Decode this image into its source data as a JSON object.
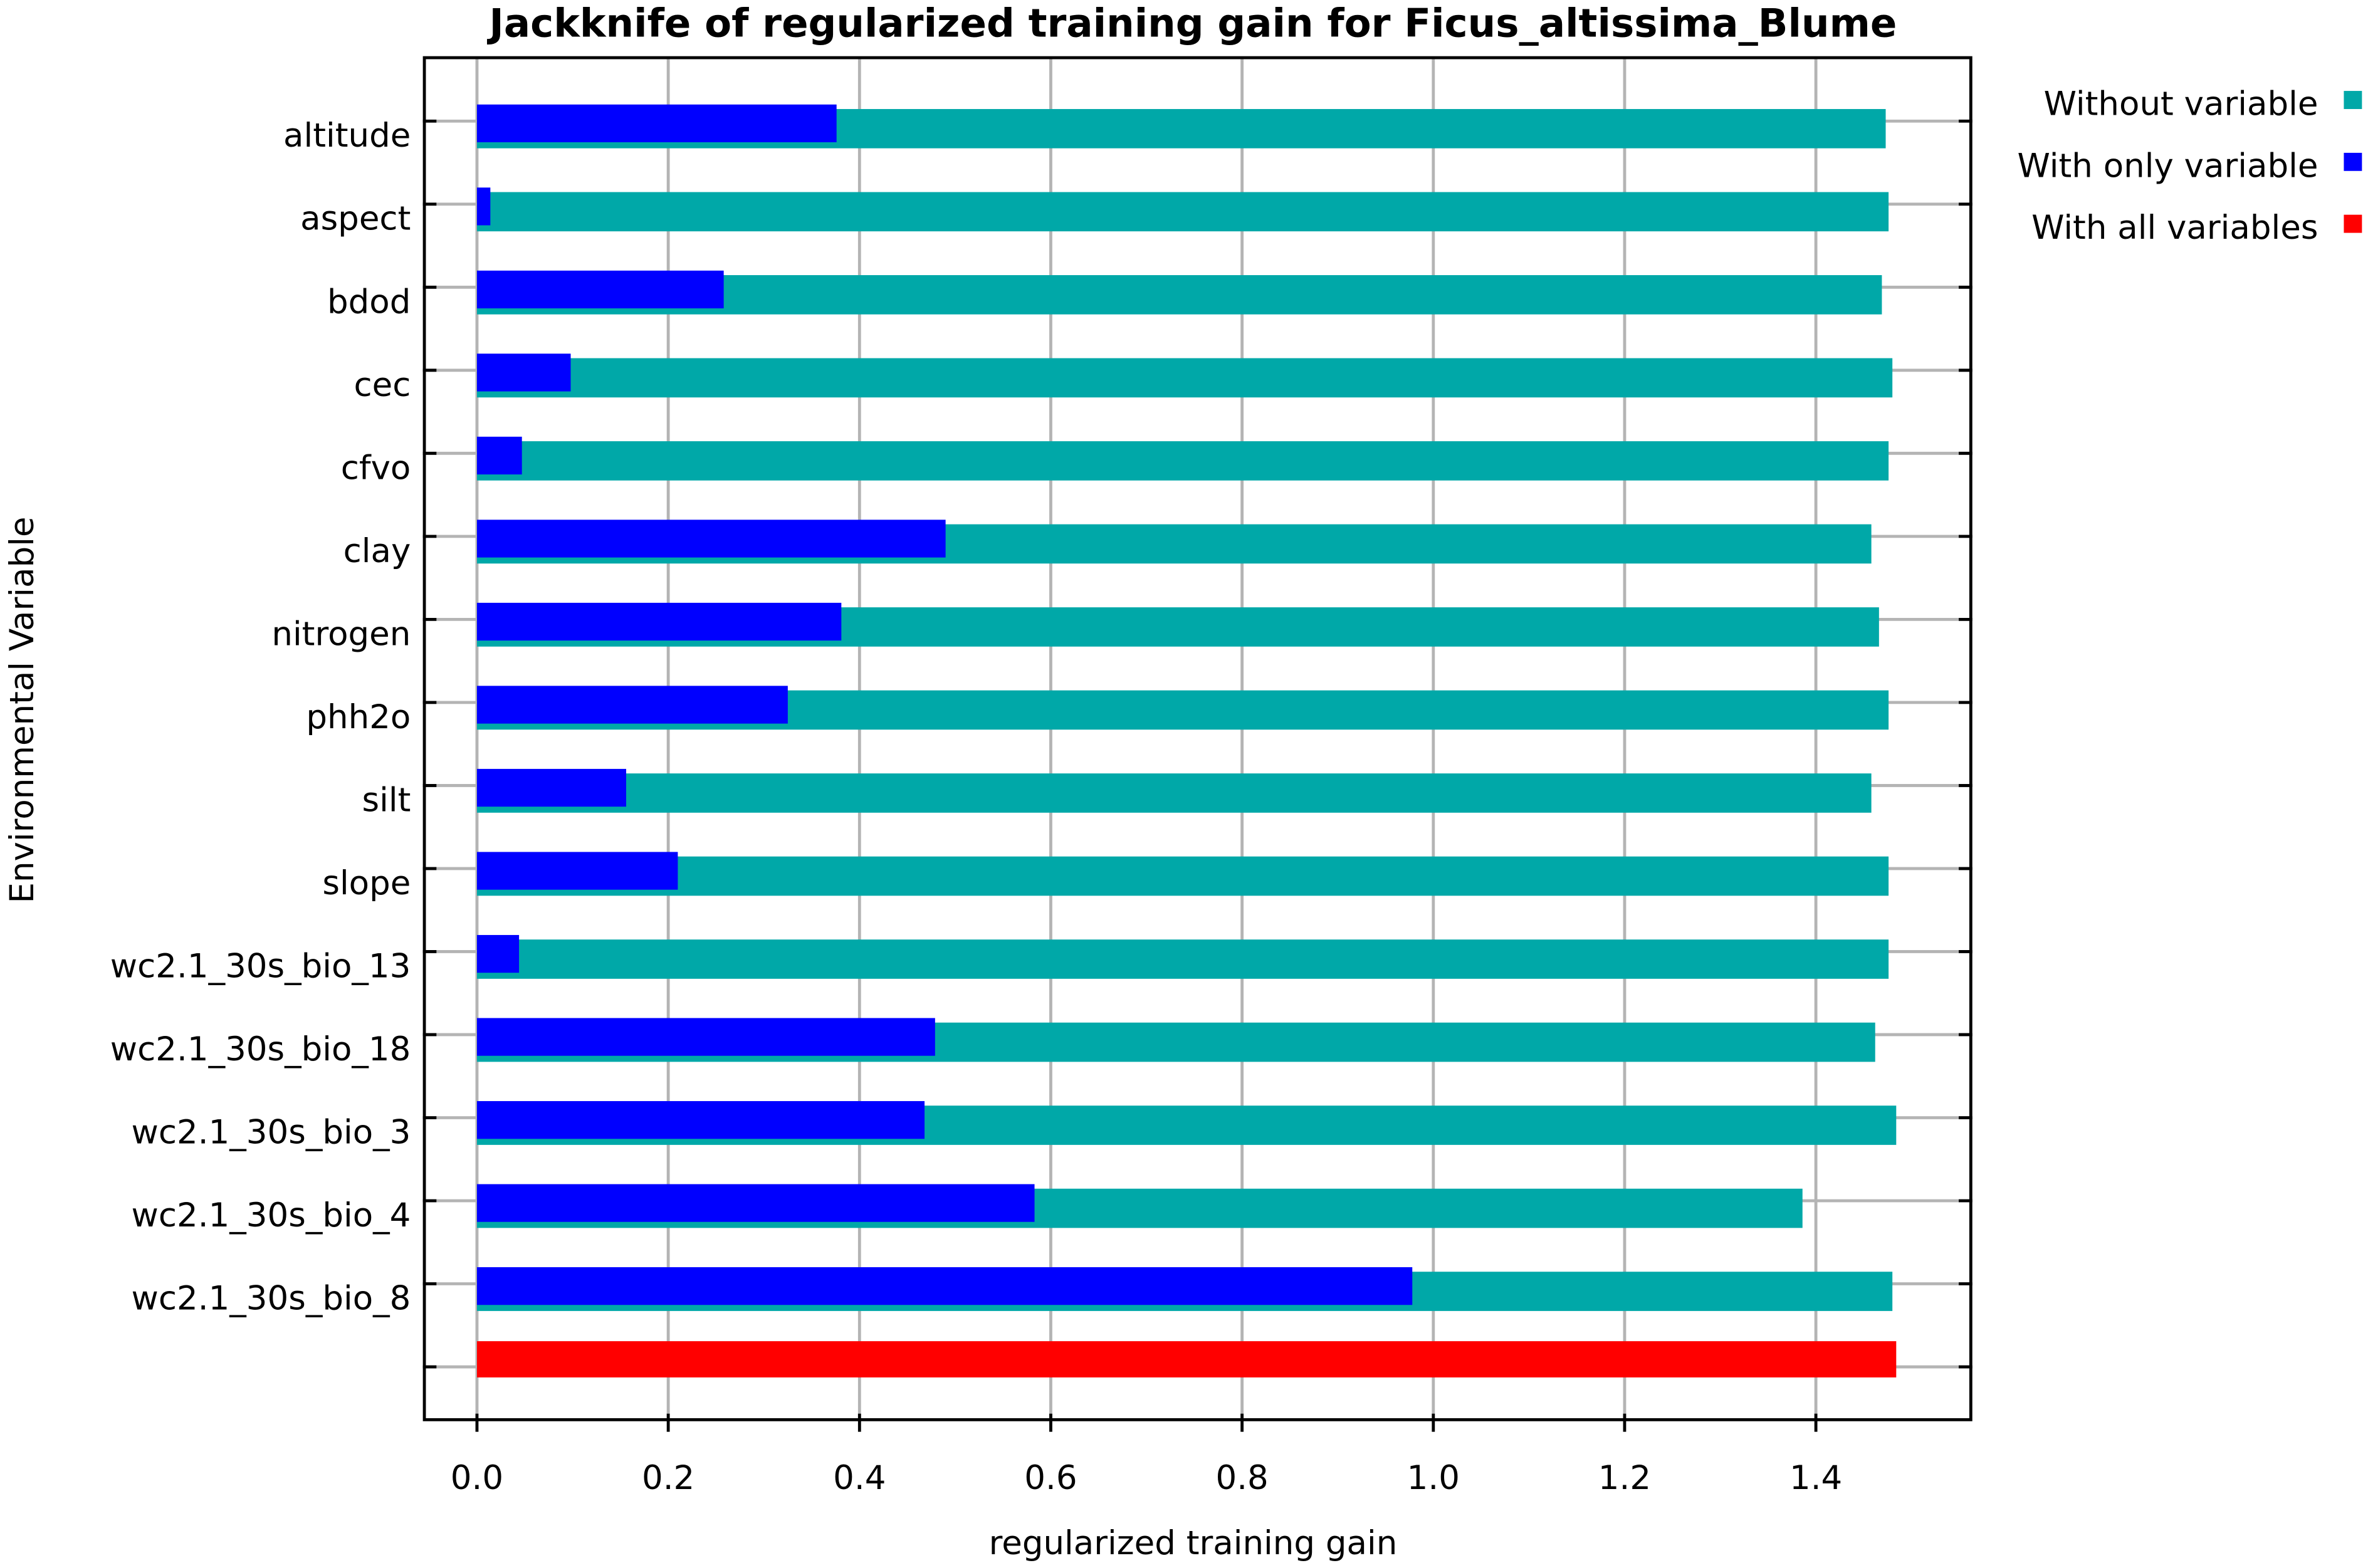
{
  "chart_data": {
    "type": "bar",
    "orientation": "horizontal",
    "title": "Jackknife of regularized training gain for Ficus_altissima_Blume",
    "x_label": "regularized training gain",
    "y_label": "Environmental Variable",
    "categories": [
      "altitude",
      "aspect",
      "bdod",
      "cec",
      "cfvo",
      "clay",
      "nitrogen",
      "phh2o",
      "silt",
      "slope",
      "wc2.1_30s_bio_13",
      "wc2.1_30s_bio_18",
      "wc2.1_30s_bio_3",
      "wc2.1_30s_bio_4",
      "wc2.1_30s_bio_8",
      null
    ],
    "series": [
      {
        "name": "Without variable",
        "color": "#00a8a8",
        "values": [
          1.473,
          1.476,
          1.469,
          1.48,
          1.476,
          1.458,
          1.466,
          1.476,
          1.458,
          1.476,
          1.476,
          1.462,
          1.484,
          1.386,
          1.48,
          null
        ]
      },
      {
        "name": "With only variable",
        "color": "#0000ff",
        "values": [
          0.376,
          0.014,
          0.258,
          0.098,
          0.047,
          0.49,
          0.381,
          0.325,
          0.156,
          0.21,
          0.044,
          0.479,
          0.468,
          0.583,
          0.978,
          null
        ]
      },
      {
        "name": "With all variables",
        "color": "#ff0000",
        "values": [
          null,
          null,
          null,
          null,
          null,
          null,
          null,
          null,
          null,
          null,
          null,
          null,
          null,
          null,
          null,
          1.484
        ]
      }
    ],
    "xlim": [
      -0.055,
      1.562
    ],
    "xticks": [
      {
        "value": 0,
        "label": "0.0"
      },
      0.2,
      0.4,
      0.6,
      0.8,
      {
        "value": 1,
        "label": "1.0"
      },
      1.2,
      1.4
    ],
    "grid": true,
    "legend": "right"
  }
}
